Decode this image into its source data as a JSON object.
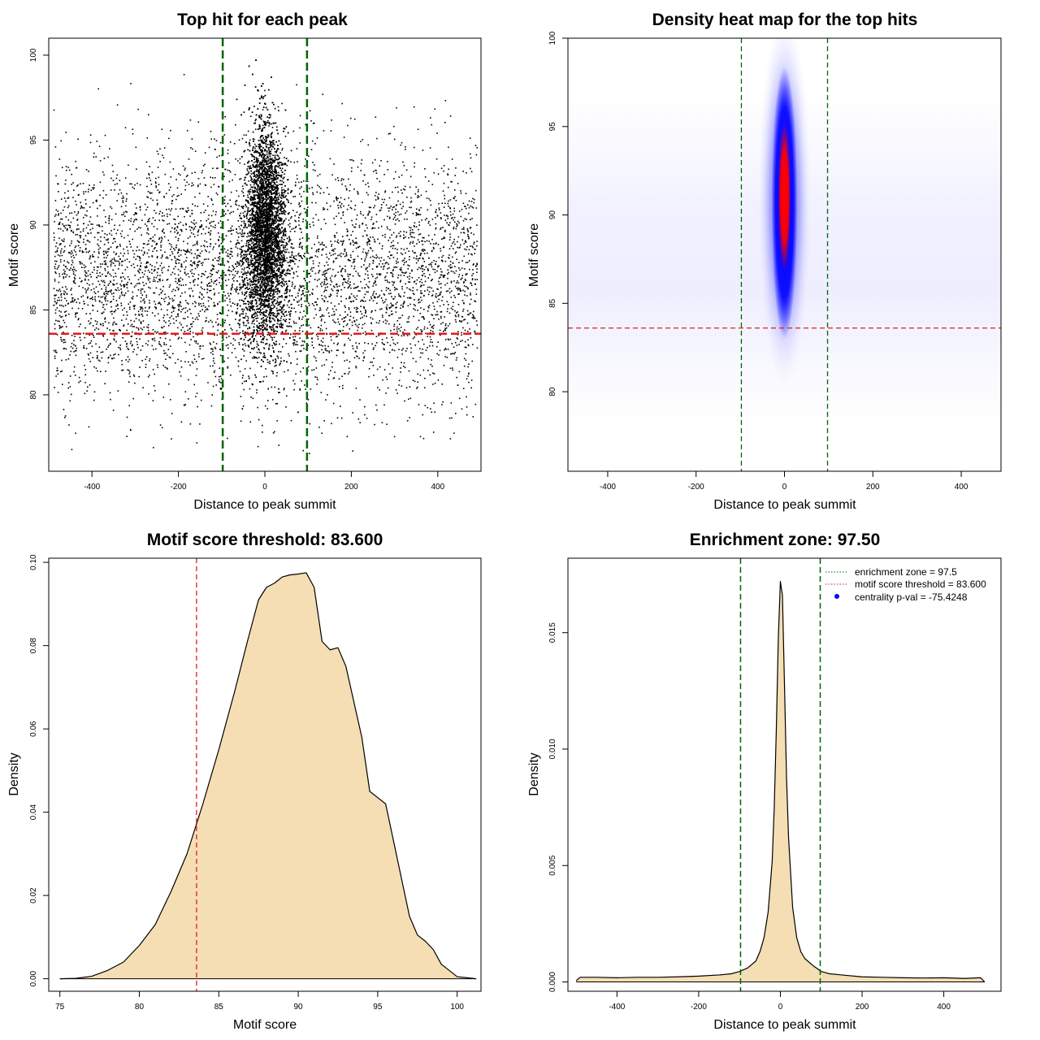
{
  "chart_data": [
    {
      "type": "scatter",
      "title": "Top hit for each peak",
      "xlabel": "Distance to peak summit",
      "ylabel": "Motif score",
      "xlim": [
        -500,
        500
      ],
      "ylim": [
        75.5,
        101
      ],
      "xticks": [
        -400,
        -200,
        0,
        200,
        400
      ],
      "yticks": [
        80,
        85,
        90,
        95,
        100
      ],
      "grid": false,
      "reference_lines": [
        {
          "orientation": "vertical",
          "value": -97.5,
          "color": "#006400",
          "style": "dashed"
        },
        {
          "orientation": "vertical",
          "value": 97.5,
          "color": "#006400",
          "style": "dashed"
        },
        {
          "orientation": "horizontal",
          "value": 83.6,
          "color": "#e41a1c",
          "style": "dashed"
        }
      ],
      "point_cloud": {
        "central_peak": {
          "x_center": 0,
          "x_spread": 22,
          "y_range": [
            77,
            100
          ],
          "y_mode": 89.5
        },
        "background": {
          "x_range": [
            -490,
            490
          ],
          "y_range": [
            76.5,
            99
          ],
          "y_mode": 87
        }
      }
    },
    {
      "type": "heatmap",
      "title": "Density heat map for the top hits",
      "xlabel": "Distance to peak summit",
      "ylabel": "Motif score",
      "xlim": [
        -490,
        490
      ],
      "ylim": [
        75.5,
        100
      ],
      "xticks": [
        -400,
        -200,
        0,
        200,
        400
      ],
      "yticks": [
        80,
        85,
        90,
        95,
        100
      ],
      "colors": [
        "#ffffff",
        "#0000ff",
        "#ff0000"
      ],
      "grid": false,
      "reference_lines": [
        {
          "orientation": "vertical",
          "value": -97.5,
          "color": "#006400",
          "style": "dashed"
        },
        {
          "orientation": "vertical",
          "value": 97.5,
          "color": "#006400",
          "style": "dashed"
        },
        {
          "orientation": "horizontal",
          "value": 83.6,
          "color": "#e41a1c",
          "style": "dashed"
        }
      ],
      "hotspot": {
        "x": 0,
        "y": 90.5
      }
    },
    {
      "type": "area",
      "title": "Motif score threshold: 83.600",
      "xlabel": "Motif score",
      "ylabel": "Density",
      "xlim": [
        74.3,
        101.5
      ],
      "ylim": [
        -0.003,
        0.101
      ],
      "xticks": [
        75,
        80,
        85,
        90,
        95,
        100
      ],
      "yticks": [
        0.0,
        0.02,
        0.04,
        0.06,
        0.08,
        0.1
      ],
      "ytick_labels": [
        "0.00",
        "0.02",
        "0.04",
        "0.06",
        "0.08",
        "0.10"
      ],
      "fill_color": "#f5deb3",
      "grid": false,
      "reference_lines": [
        {
          "orientation": "vertical",
          "value": 83.6,
          "color": "#e41a1c",
          "style": "dashed"
        }
      ],
      "x": [
        75,
        76,
        77,
        78,
        79,
        80,
        81,
        82,
        83,
        84,
        85,
        86,
        86.8,
        87.5,
        88,
        88.5,
        89,
        89.5,
        90,
        90.5,
        91,
        91.5,
        92,
        92.5,
        93,
        94,
        94.5,
        95,
        95.5,
        96,
        96.5,
        97,
        97.5,
        98,
        98.5,
        99,
        100,
        101.2
      ],
      "y": [
        0.0,
        0.0001,
        0.0006,
        0.002,
        0.004,
        0.008,
        0.013,
        0.021,
        0.03,
        0.042,
        0.055,
        0.069,
        0.081,
        0.091,
        0.094,
        0.095,
        0.0965,
        0.097,
        0.0972,
        0.0975,
        0.094,
        0.081,
        0.079,
        0.0795,
        0.075,
        0.058,
        0.045,
        0.0435,
        0.042,
        0.033,
        0.024,
        0.015,
        0.0105,
        0.009,
        0.007,
        0.0035,
        0.0005,
        0.0
      ]
    },
    {
      "type": "area",
      "title": "Enrichment zone: 97.50",
      "xlabel": "Distance to peak summit",
      "ylabel": "Density",
      "xlim": [
        -520,
        540
      ],
      "ylim": [
        -0.0004,
        0.0182
      ],
      "xticks": [
        -400,
        -200,
        0,
        200,
        400
      ],
      "yticks": [
        0.0,
        0.005,
        0.01,
        0.015
      ],
      "ytick_labels": [
        "0.000",
        "0.005",
        "0.010",
        "0.015"
      ],
      "fill_color": "#f5deb3",
      "grid": false,
      "reference_lines": [
        {
          "orientation": "vertical",
          "value": -97.5,
          "color": "#006400",
          "style": "dashed"
        },
        {
          "orientation": "vertical",
          "value": 97.5,
          "color": "#006400",
          "style": "dashed"
        }
      ],
      "x": [
        -500,
        -490,
        -450,
        -400,
        -350,
        -300,
        -250,
        -200,
        -150,
        -120,
        -100,
        -80,
        -60,
        -50,
        -40,
        -30,
        -20,
        -15,
        -10,
        -5,
        0,
        5,
        10,
        15,
        20,
        30,
        40,
        50,
        60,
        80,
        100,
        120,
        150,
        200,
        250,
        300,
        350,
        400,
        450,
        490,
        500
      ],
      "y": [
        5e-05,
        0.0002,
        0.0002,
        0.00018,
        0.0002,
        0.0002,
        0.00022,
        0.00025,
        0.0003,
        0.00035,
        0.00045,
        0.0006,
        0.0009,
        0.0013,
        0.0019,
        0.003,
        0.0052,
        0.0075,
        0.0108,
        0.0148,
        0.0172,
        0.0166,
        0.0128,
        0.0088,
        0.0062,
        0.0032,
        0.0019,
        0.0013,
        0.001,
        0.0007,
        0.00045,
        0.00035,
        0.0003,
        0.00022,
        0.0002,
        0.00018,
        0.00017,
        0.00018,
        0.00015,
        0.00018,
        0.0
      ],
      "legend": {
        "position": "top-right",
        "entries": [
          {
            "label": "enrichment zone = 97.5",
            "color": "#006400",
            "symbol": "dotted-line"
          },
          {
            "label": "motif score threshold = 83.600",
            "color": "#e41a1c",
            "symbol": "dotted-line"
          },
          {
            "label": "centrality p-val = -75.4248",
            "color": "#0000ff",
            "symbol": "dot"
          }
        ]
      }
    }
  ]
}
